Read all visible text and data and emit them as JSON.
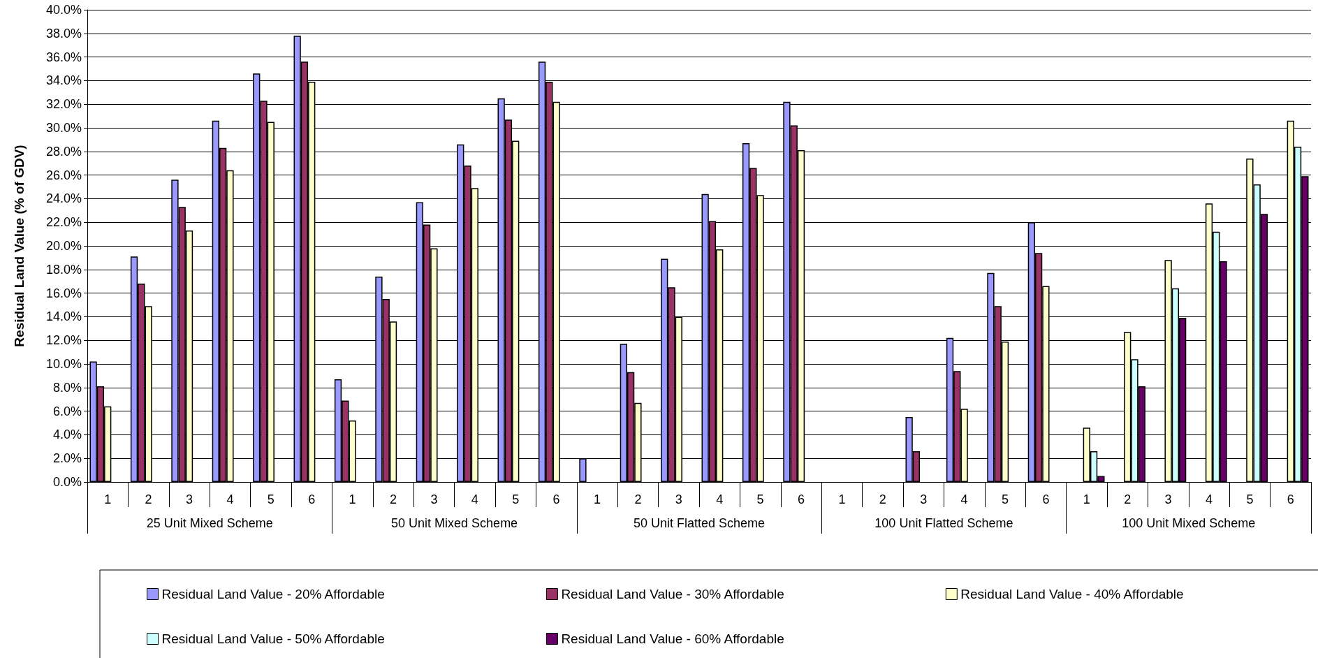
{
  "chart_data": {
    "type": "bar",
    "ylabel": "Residual Land Value (% of GDV)",
    "categories": [
      "1",
      "2",
      "3",
      "4",
      "5",
      "6",
      "1",
      "2",
      "3",
      "4",
      "5",
      "6",
      "1",
      "2",
      "3",
      "4",
      "5",
      "6",
      "1",
      "2",
      "3",
      "4",
      "5",
      "6",
      "1",
      "2",
      "3",
      "4",
      "5",
      "6"
    ],
    "annotations": [
      "25 Unit Mixed Scheme",
      "50 Unit Mixed Scheme",
      "50 Unit Flatted Scheme",
      "100 Unit Flatted Scheme",
      "100 Unit Mixed Scheme"
    ],
    "series": [
      {
        "name": "Residual Land Value - 20% Affordable",
        "color": "#9999ff",
        "values": [
          10.2,
          19.1,
          25.6,
          30.6,
          34.6,
          37.8,
          8.7,
          17.4,
          23.7,
          28.6,
          32.5,
          35.6,
          2.0,
          11.7,
          18.9,
          24.4,
          28.7,
          32.2,
          null,
          null,
          5.5,
          12.2,
          17.7,
          22.0,
          null,
          null,
          null,
          null,
          null,
          null
        ]
      },
      {
        "name": "Residual Land Value - 30% Affordable",
        "color": "#993366",
        "values": [
          8.1,
          16.8,
          23.3,
          28.3,
          32.3,
          35.6,
          6.9,
          15.5,
          21.8,
          26.8,
          30.7,
          33.9,
          null,
          9.3,
          16.5,
          22.1,
          26.6,
          30.2,
          null,
          null,
          2.6,
          9.4,
          14.9,
          19.4,
          null,
          null,
          null,
          null,
          null,
          null
        ]
      },
      {
        "name": "Residual Land Value - 40% Affordable",
        "color": "#ffffcc",
        "values": [
          6.4,
          14.9,
          21.3,
          26.4,
          30.5,
          33.9,
          5.2,
          13.6,
          19.8,
          24.9,
          28.9,
          32.2,
          null,
          6.7,
          14.0,
          19.7,
          24.3,
          28.1,
          null,
          null,
          null,
          6.2,
          11.9,
          16.6,
          4.6,
          12.7,
          18.8,
          23.6,
          27.4,
          30.6
        ]
      },
      {
        "name": "Residual Land Value - 50% Affordable",
        "color": "#ccffff",
        "values": [
          null,
          null,
          null,
          null,
          null,
          null,
          null,
          null,
          null,
          null,
          null,
          null,
          null,
          null,
          null,
          null,
          null,
          null,
          null,
          null,
          null,
          null,
          null,
          null,
          2.6,
          10.4,
          16.4,
          21.2,
          25.2,
          28.4
        ]
      },
      {
        "name": "Residual Land Value - 60% Affordable",
        "color": "#660066",
        "values": [
          null,
          null,
          null,
          null,
          null,
          null,
          null,
          null,
          null,
          null,
          null,
          null,
          null,
          null,
          null,
          null,
          null,
          null,
          null,
          null,
          null,
          null,
          null,
          null,
          0.5,
          8.1,
          13.9,
          18.7,
          22.7,
          25.9
        ]
      }
    ],
    "ylim": [
      0,
      40
    ],
    "yticks": [
      {
        "value": 0,
        "label": "0.0%"
      },
      {
        "value": 2,
        "label": "2.0%"
      },
      {
        "value": 4,
        "label": "4.0%"
      },
      {
        "value": 6,
        "label": "6.0%"
      },
      {
        "value": 8,
        "label": "8.0%"
      },
      {
        "value": 10,
        "label": "10.0%"
      },
      {
        "value": 12,
        "label": "12.0%"
      },
      {
        "value": 14,
        "label": "14.0%"
      },
      {
        "value": 16,
        "label": "16.0%"
      },
      {
        "value": 18,
        "label": "18.0%"
      },
      {
        "value": 20,
        "label": "20.0%"
      },
      {
        "value": 22,
        "label": "22.0%"
      },
      {
        "value": 24,
        "label": "24.0%"
      },
      {
        "value": 26,
        "label": "26.0%"
      },
      {
        "value": 28,
        "label": "28.0%"
      },
      {
        "value": 30,
        "label": "30.0%"
      },
      {
        "value": 32,
        "label": "32.0%"
      },
      {
        "value": 34,
        "label": "34.0%"
      },
      {
        "value": 36,
        "label": "36.0%"
      },
      {
        "value": 38,
        "label": "38.0%"
      },
      {
        "value": 40,
        "label": "40.0%"
      }
    ],
    "grid": "y",
    "legend": "bottom"
  }
}
